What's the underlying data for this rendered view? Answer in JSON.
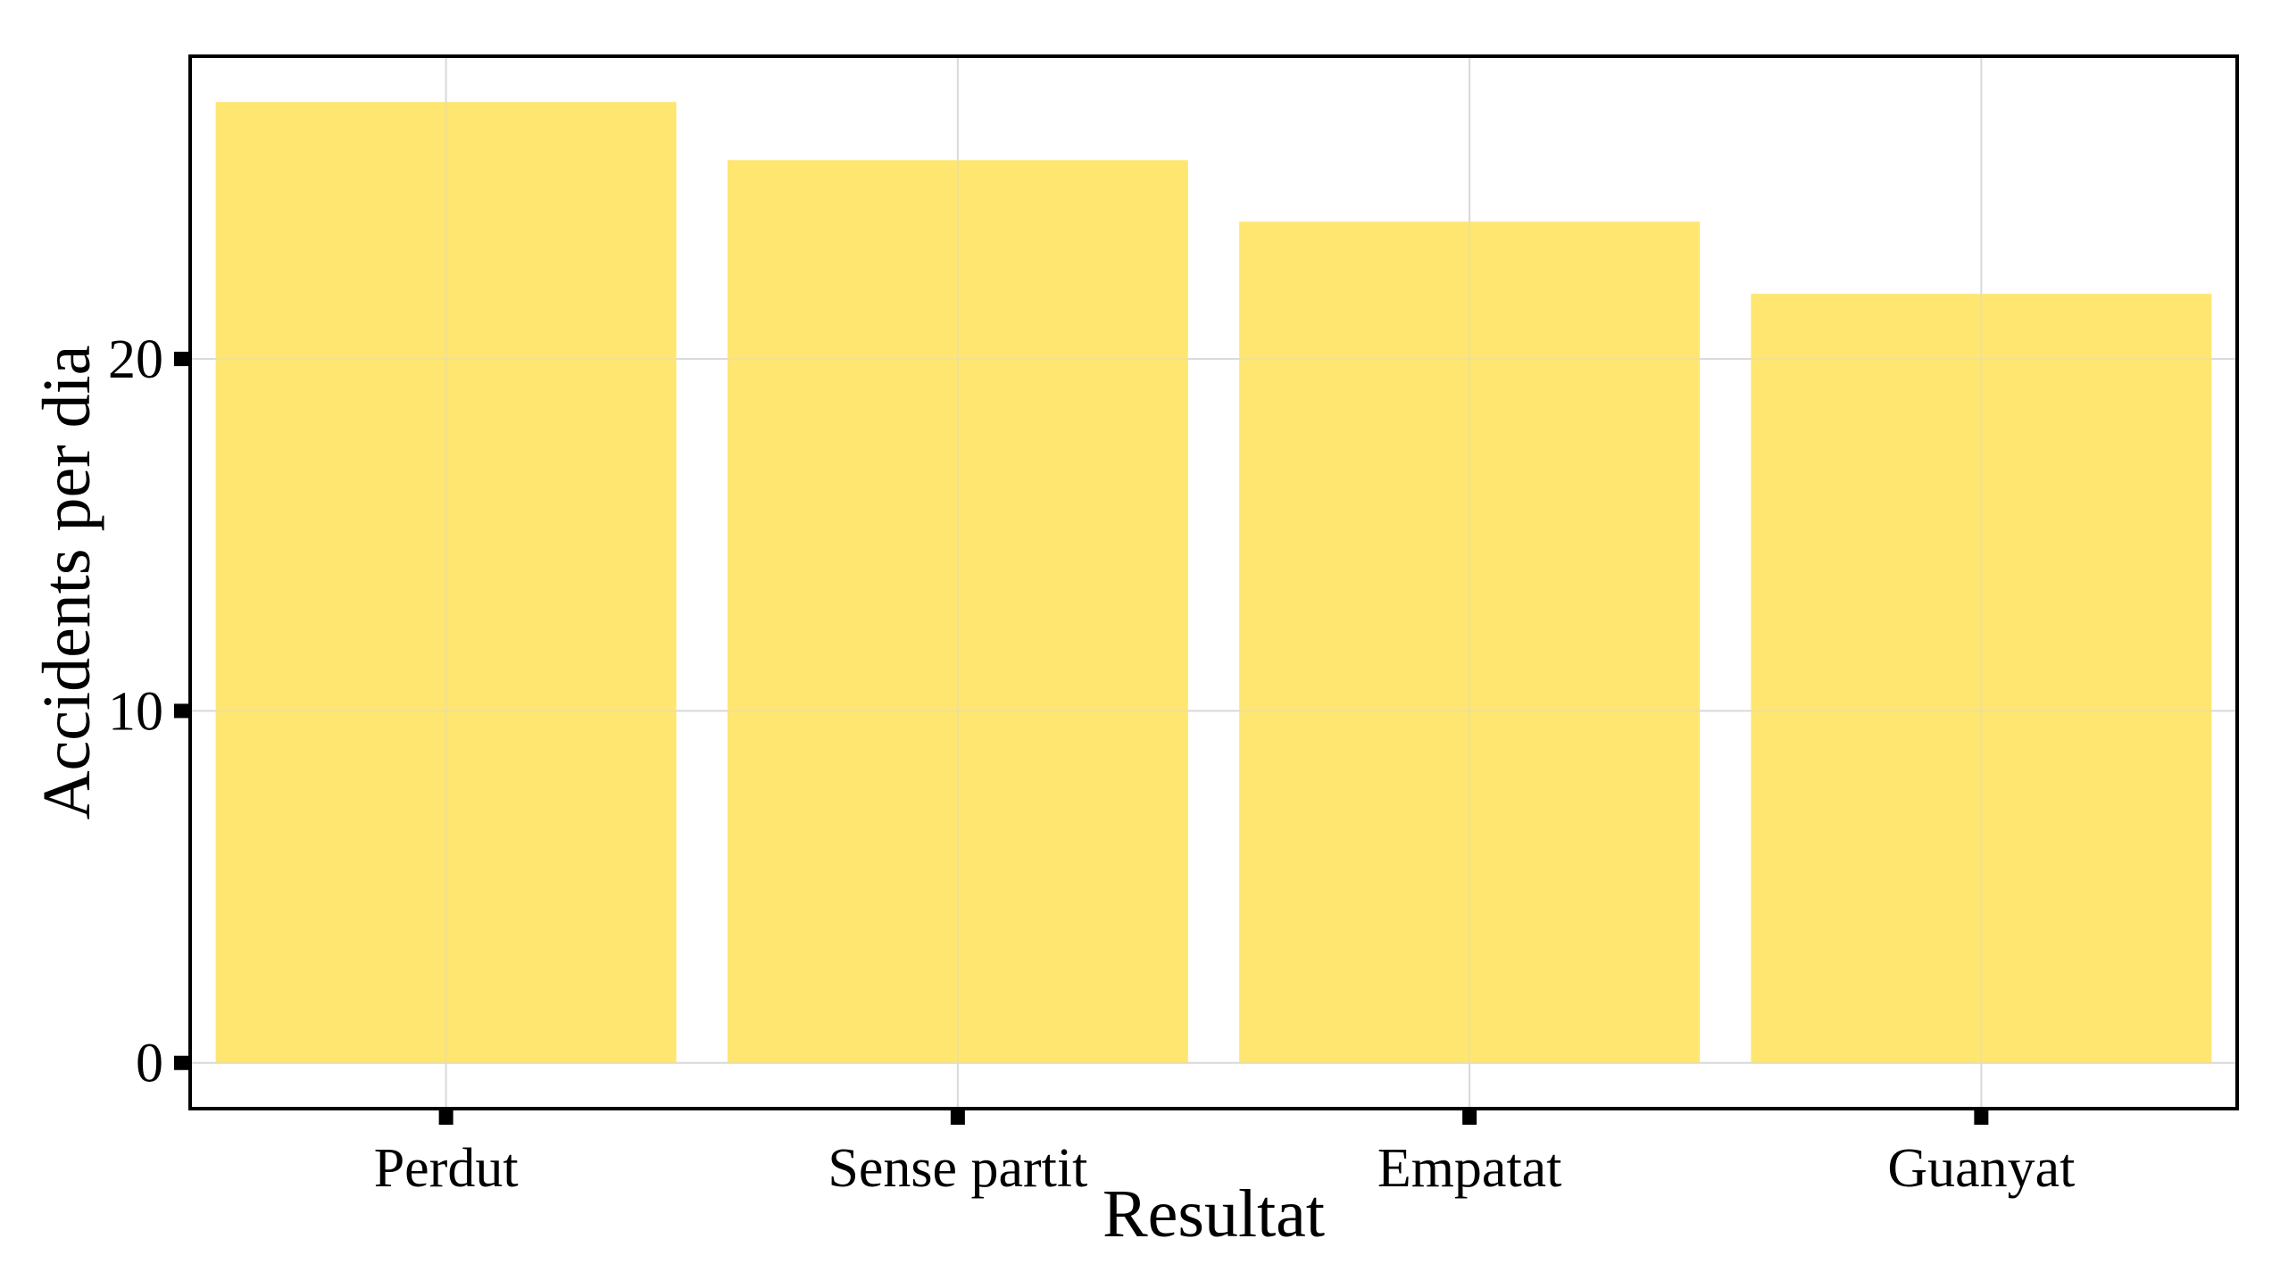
{
  "chart_data": {
    "type": "bar",
    "title": "",
    "xlabel": "Resultat",
    "ylabel": "Accidents per dia",
    "categories": [
      "Perdut",
      "Sense partit",
      "Empatat",
      "Guanyat"
    ],
    "values": [
      27.3,
      25.65,
      23.9,
      21.85
    ],
    "ylim": [
      -1.3,
      28.6
    ],
    "yticks": [
      0,
      10,
      20
    ],
    "ytick_labels": [
      "0",
      "10",
      "20"
    ],
    "grid": true,
    "legend": "none",
    "colors": {
      "bar": "#FEE466",
      "grid": "#D9D9D9",
      "frame": "#000000"
    }
  }
}
